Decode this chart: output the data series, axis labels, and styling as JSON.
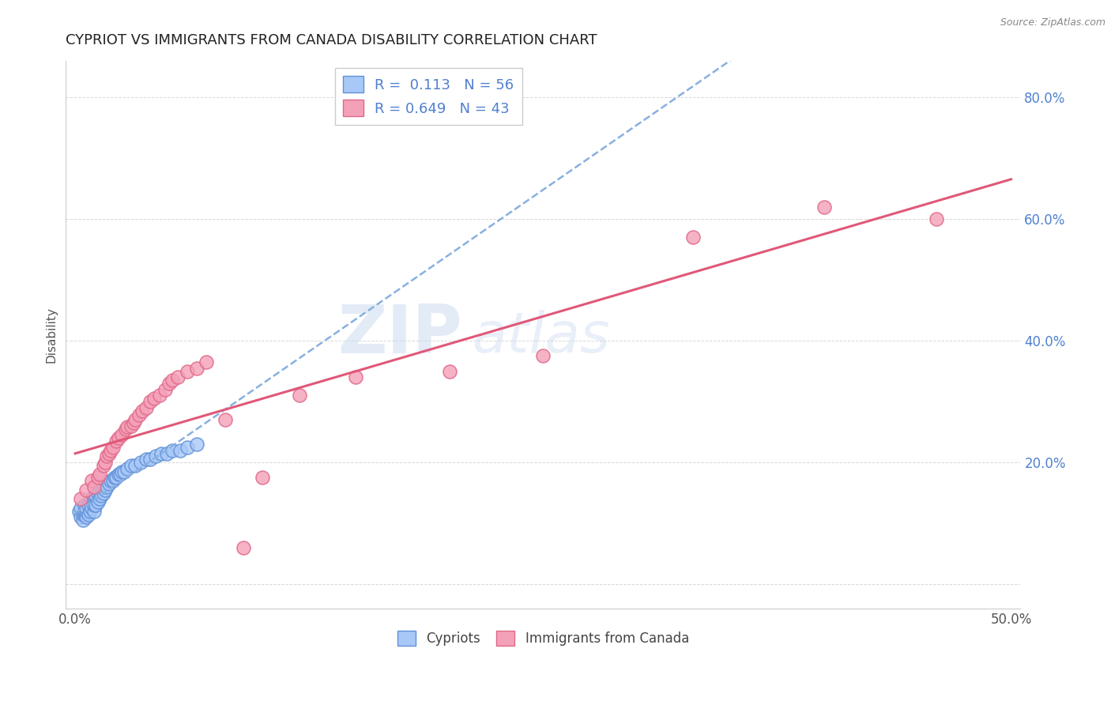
{
  "title": "CYPRIOT VS IMMIGRANTS FROM CANADA DISABILITY CORRELATION CHART",
  "source": "Source: ZipAtlas.com",
  "ylabel": "Disability",
  "R_cypriot": 0.113,
  "N_cypriot": 56,
  "R_immigrants": 0.649,
  "N_immigrants": 43,
  "cypriot_color": "#a8c8f8",
  "cypriot_edge_color": "#6090d8",
  "immigrant_color": "#f4a0b8",
  "immigrant_edge_color": "#e06888",
  "cypriot_line_color": "#88b0e0",
  "immigrant_line_color": "#e05878",
  "watermark_color": "#c8d8f0",
  "background_color": "#ffffff",
  "grid_color": "#d8d8d8",
  "title_color": "#222222",
  "source_color": "#888888",
  "ytick_color": "#5080d0",
  "xlim": [
    -0.005,
    0.505
  ],
  "ylim": [
    -0.04,
    0.86
  ],
  "ytick_positions": [
    0.0,
    0.2,
    0.4,
    0.6,
    0.8
  ],
  "xtick_positions": [
    0.0,
    0.1,
    0.2,
    0.3,
    0.4,
    0.5
  ],
  "cypriot_x": [
    0.002,
    0.003,
    0.003,
    0.004,
    0.004,
    0.005,
    0.005,
    0.005,
    0.006,
    0.006,
    0.006,
    0.007,
    0.007,
    0.008,
    0.008,
    0.009,
    0.009,
    0.01,
    0.01,
    0.01,
    0.01,
    0.011,
    0.011,
    0.012,
    0.012,
    0.013,
    0.013,
    0.014,
    0.014,
    0.015,
    0.015,
    0.016,
    0.016,
    0.017,
    0.018,
    0.019,
    0.02,
    0.021,
    0.022,
    0.023,
    0.024,
    0.025,
    0.026,
    0.028,
    0.03,
    0.032,
    0.035,
    0.038,
    0.04,
    0.043,
    0.046,
    0.049,
    0.052,
    0.056,
    0.06,
    0.065
  ],
  "cypriot_y": [
    0.12,
    0.11,
    0.125,
    0.105,
    0.115,
    0.115,
    0.12,
    0.13,
    0.11,
    0.12,
    0.125,
    0.115,
    0.13,
    0.12,
    0.135,
    0.125,
    0.14,
    0.12,
    0.13,
    0.14,
    0.145,
    0.13,
    0.145,
    0.135,
    0.15,
    0.14,
    0.155,
    0.145,
    0.16,
    0.15,
    0.16,
    0.155,
    0.165,
    0.16,
    0.165,
    0.17,
    0.17,
    0.175,
    0.175,
    0.18,
    0.18,
    0.185,
    0.185,
    0.19,
    0.195,
    0.195,
    0.2,
    0.205,
    0.205,
    0.21,
    0.215,
    0.215,
    0.22,
    0.22,
    0.225,
    0.23
  ],
  "immigrant_x": [
    0.003,
    0.006,
    0.009,
    0.01,
    0.012,
    0.013,
    0.015,
    0.016,
    0.017,
    0.018,
    0.019,
    0.02,
    0.022,
    0.023,
    0.025,
    0.027,
    0.028,
    0.03,
    0.031,
    0.032,
    0.034,
    0.036,
    0.038,
    0.04,
    0.042,
    0.045,
    0.048,
    0.05,
    0.052,
    0.055,
    0.06,
    0.065,
    0.07,
    0.08,
    0.09,
    0.1,
    0.12,
    0.15,
    0.2,
    0.25,
    0.33,
    0.4,
    0.46
  ],
  "immigrant_y": [
    0.14,
    0.155,
    0.17,
    0.16,
    0.175,
    0.18,
    0.195,
    0.2,
    0.21,
    0.215,
    0.22,
    0.225,
    0.235,
    0.24,
    0.245,
    0.255,
    0.258,
    0.26,
    0.265,
    0.27,
    0.278,
    0.285,
    0.29,
    0.3,
    0.305,
    0.31,
    0.32,
    0.33,
    0.335,
    0.34,
    0.35,
    0.355,
    0.365,
    0.27,
    0.06,
    0.175,
    0.31,
    0.34,
    0.35,
    0.375,
    0.57,
    0.62,
    0.6
  ]
}
